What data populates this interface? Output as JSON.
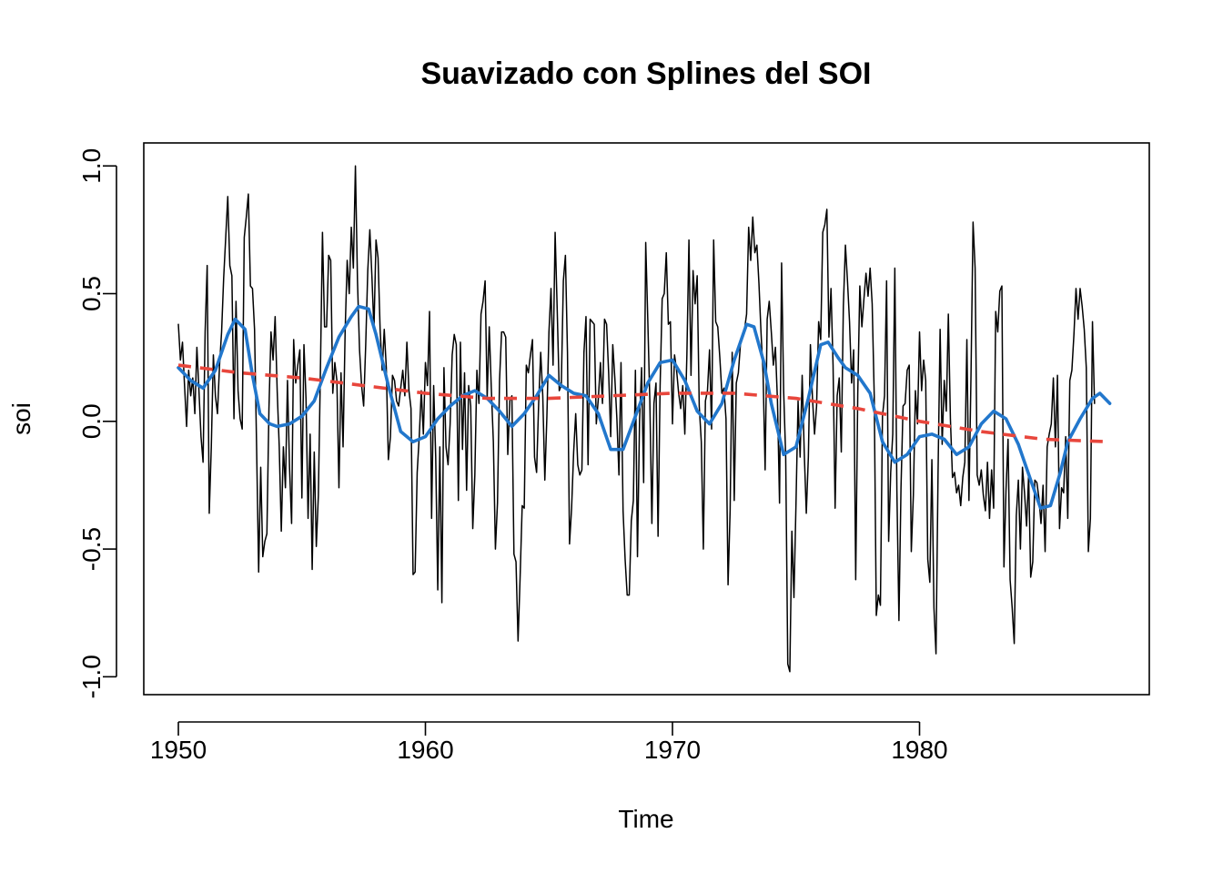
{
  "chart_data": {
    "type": "line",
    "title": "Suavizado con Splines del SOI",
    "xlabel": "Time",
    "ylabel": "soi",
    "xlim": [
      1948.6,
      1989.3
    ],
    "ylim": [
      -1.07,
      1.09
    ],
    "x_ticks": [
      1950,
      1960,
      1970,
      1980
    ],
    "x_tick_labels": [
      "1950",
      "1960",
      "1970",
      "1980"
    ],
    "y_ticks": [
      -1.0,
      -0.5,
      0.0,
      0.5,
      1.0
    ],
    "y_tick_labels": [
      "-1.0",
      "-0.5",
      "0.0",
      "0.5",
      "1.0"
    ],
    "grid": false,
    "legend": "none",
    "series": [
      {
        "start": 1950,
        "frequency": 12,
        "color": "#000000",
        "style": "solid",
        "values": [
          0.38,
          0.24,
          0.31,
          0.14,
          -0.02,
          0.2,
          0.1,
          0.17,
          0.03,
          0.29,
          0.12,
          -0.06,
          -0.16,
          0.35,
          0.61,
          -0.36,
          -0.1,
          0.26,
          0.1,
          0.03,
          0.22,
          0.35,
          0.56,
          0.72,
          0.88,
          0.61,
          0.57,
          0.01,
          0.47,
          0.12,
          0.01,
          -0.03,
          0.72,
          0.8,
          0.89,
          0.53,
          0.52,
          0.36,
          -0.1,
          -0.59,
          -0.18,
          -0.53,
          -0.47,
          -0.44,
          0.05,
          0.35,
          0.24,
          0.41,
          0.12,
          -0.1,
          -0.43,
          -0.1,
          -0.26,
          0.16,
          -0.18,
          -0.4,
          0.32,
          0.15,
          0.22,
          0.28,
          -0.3,
          0.3,
          0.09,
          -0.38,
          -0.05,
          -0.58,
          -0.12,
          -0.49,
          -0.29,
          0.2,
          0.74,
          0.37,
          0.37,
          0.65,
          0.63,
          0.11,
          0.23,
          0.16,
          -0.26,
          0.19,
          -0.1,
          0.35,
          0.63,
          0.5,
          0.76,
          0.6,
          1.0,
          0.55,
          0.28,
          0.14,
          0.06,
          0.3,
          0.59,
          0.75,
          0.57,
          0.36,
          0.71,
          0.64,
          0.36,
          0.2,
          0.36,
          0.21,
          -0.15,
          -0.06,
          0.18,
          0.16,
          0.08,
          0.06,
          0.13,
          0.2,
          0.1,
          0.31,
          0.12,
          0.05,
          -0.6,
          -0.59,
          -0.2,
          -0.06,
          0.12,
          -0.05,
          0.23,
          0.14,
          0.43,
          -0.38,
          0.14,
          -0.14,
          -0.66,
          -0.1,
          -0.71,
          0.21,
          -0.1,
          -0.17,
          -0.01,
          0.26,
          0.34,
          0.3,
          -0.31,
          0.31,
          -0.11,
          0.19,
          -0.27,
          0.14,
          0.06,
          -0.42,
          -0.21,
          0.2,
          0.07,
          0.42,
          0.47,
          0.55,
          0.09,
          0.37,
          0.13,
          -0.08,
          -0.5,
          -0.32,
          0.16,
          0.35,
          0.35,
          0.33,
          -0.13,
          0.08,
          0.1,
          -0.52,
          -0.55,
          -0.86,
          -0.61,
          -0.33,
          -0.34,
          0.22,
          0.19,
          0.26,
          0.32,
          -0.14,
          -0.2,
          0.07,
          0.27,
          0.1,
          -0.23,
          0.02,
          0.35,
          0.52,
          0.22,
          0.74,
          0.44,
          0.12,
          0.14,
          0.55,
          0.65,
          0.27,
          -0.48,
          -0.34,
          -0.12,
          0.03,
          -0.17,
          -0.21,
          -0.19,
          0.27,
          0.41,
          -0.17,
          0.4,
          0.39,
          0.38,
          -0.01,
          0.09,
          0.23,
          0.07,
          0.4,
          0.38,
          0.19,
          -0.06,
          0.3,
          0.17,
          0.01,
          -0.21,
          0.23,
          -0.35,
          -0.54,
          -0.68,
          -0.68,
          -0.39,
          -0.31,
          0.2,
          -0.53,
          0.0,
          0.21,
          -0.24,
          0.7,
          0.4,
          0.08,
          -0.4,
          0.07,
          0.15,
          -0.45,
          0.14,
          0.48,
          0.5,
          0.66,
          0.38,
          0.39,
          -0.01,
          0.26,
          0.2,
          0.11,
          0.05,
          0.14,
          -0.05,
          0.26,
          0.71,
          0.18,
          0.59,
          0.46,
          0.57,
          0.06,
          -0.08,
          -0.5,
          0.08,
          0.12,
          0.28,
          -0.03,
          0.71,
          0.39,
          0.37,
          0.25,
          0.11,
          0.13,
          0.01,
          -0.64,
          -0.35,
          0.27,
          -0.31,
          0.15,
          0.19,
          0.3,
          0.33,
          0.36,
          0.42,
          0.76,
          0.63,
          0.8,
          0.66,
          0.69,
          0.54,
          0.35,
          0.19,
          -0.19,
          0.4,
          0.47,
          0.35,
          0.22,
          0.29,
          0.08,
          -0.32,
          0.62,
          0.12,
          -0.14,
          -0.95,
          -0.98,
          -0.43,
          -0.69,
          -0.32,
          0.08,
          -0.14,
          0.18,
          -0.12,
          -0.36,
          -0.14,
          0.3,
          0.09,
          -0.05,
          0.06,
          0.39,
          0.32,
          0.74,
          0.77,
          0.83,
          0.33,
          0.52,
          0.22,
          -0.34,
          0.1,
          0.17,
          -0.12,
          0.45,
          0.69,
          0.55,
          0.39,
          0.15,
          0.28,
          -0.62,
          0.11,
          0.53,
          0.37,
          0.48,
          0.58,
          0.49,
          0.6,
          0.46,
          0.1,
          -0.76,
          -0.68,
          -0.72,
          0.02,
          0.1,
          0.55,
          -0.47,
          -0.2,
          -0.05,
          0.6,
          -0.27,
          -0.78,
          -0.26,
          0.06,
          0.07,
          0.2,
          0.22,
          -0.51,
          -0.29,
          0.12,
          -0.01,
          0.35,
          0.12,
          0.24,
          0.16,
          -0.54,
          -0.63,
          -0.15,
          -0.73,
          -0.91,
          -0.2,
          0.36,
          -0.09,
          0.16,
          0.04,
          0.42,
          0.01,
          -0.22,
          -0.2,
          -0.28,
          -0.25,
          -0.33,
          -0.22,
          -0.16,
          0.32,
          -0.31,
          0.18,
          0.78,
          0.6,
          -0.21,
          -0.25,
          -0.19,
          -0.29,
          -0.35,
          -0.16,
          -0.38,
          -0.19,
          -0.34,
          0.43,
          0.35,
          0.51,
          0.53,
          -0.57,
          -0.27,
          -0.07,
          -0.62,
          -0.73,
          -0.87,
          -0.37,
          -0.23,
          -0.5,
          -0.18,
          -0.28,
          -0.41,
          -0.21,
          -0.61,
          -0.55,
          -0.23,
          -0.24,
          -0.3,
          -0.4,
          -0.25,
          -0.51,
          -0.1,
          -0.05,
          -0.01,
          0.17,
          -0.1,
          0.18,
          -0.42,
          -0.26,
          -0.28,
          -0.06,
          -0.38,
          0.16,
          0.2,
          0.34,
          0.52,
          0.4,
          0.52,
          0.45,
          0.36,
          0.21,
          -0.51,
          -0.38,
          0.39,
          0.07
        ]
      },
      {
        "color": "#2277CC",
        "style": "solid",
        "x": [
          1950.0,
          1950.5,
          1951.0,
          1951.5,
          1952.0,
          1952.3,
          1952.7,
          1953.0,
          1953.3,
          1953.7,
          1954.0,
          1954.5,
          1955.0,
          1955.5,
          1956.0,
          1956.5,
          1957.0,
          1957.3,
          1957.7,
          1958.0,
          1958.5,
          1959.0,
          1959.5,
          1960.0,
          1960.5,
          1961.0,
          1961.5,
          1962.0,
          1962.5,
          1963.0,
          1963.5,
          1964.0,
          1964.5,
          1965.0,
          1965.5,
          1966.0,
          1966.5,
          1967.0,
          1967.5,
          1968.0,
          1968.5,
          1969.0,
          1969.5,
          1970.0,
          1970.5,
          1971.0,
          1971.5,
          1972.0,
          1972.5,
          1973.0,
          1973.3,
          1973.7,
          1974.0,
          1974.5,
          1975.0,
          1975.5,
          1976.0,
          1976.3,
          1976.7,
          1977.0,
          1977.5,
          1978.0,
          1978.5,
          1979.0,
          1979.5,
          1980.0,
          1980.5,
          1981.0,
          1981.5,
          1982.0,
          1982.5,
          1983.0,
          1983.5,
          1984.0,
          1984.5,
          1984.9,
          1985.3,
          1985.7,
          1986.0,
          1986.5,
          1987.0,
          1987.3,
          1987.7
        ],
        "values": [
          0.21,
          0.16,
          0.13,
          0.2,
          0.34,
          0.4,
          0.36,
          0.18,
          0.03,
          -0.01,
          -0.02,
          -0.01,
          0.02,
          0.08,
          0.21,
          0.33,
          0.41,
          0.45,
          0.44,
          0.34,
          0.14,
          -0.04,
          -0.08,
          -0.06,
          0.01,
          0.06,
          0.1,
          0.12,
          0.09,
          0.04,
          -0.02,
          0.03,
          0.1,
          0.18,
          0.14,
          0.11,
          0.1,
          0.03,
          -0.11,
          -0.11,
          0.02,
          0.15,
          0.23,
          0.24,
          0.16,
          0.04,
          -0.01,
          0.07,
          0.24,
          0.38,
          0.37,
          0.23,
          0.07,
          -0.13,
          -0.1,
          0.09,
          0.3,
          0.31,
          0.25,
          0.21,
          0.18,
          0.11,
          -0.08,
          -0.16,
          -0.13,
          -0.06,
          -0.05,
          -0.07,
          -0.13,
          -0.1,
          -0.01,
          0.04,
          0.01,
          -0.09,
          -0.23,
          -0.34,
          -0.33,
          -0.2,
          -0.08,
          0.01,
          0.09,
          0.11,
          0.07
        ]
      },
      {
        "color": "#E8463C",
        "style": "dashed",
        "x": [
          1950.0,
          1952.5,
          1955.0,
          1957.5,
          1960.0,
          1962.5,
          1965.0,
          1967.5,
          1970.0,
          1972.5,
          1975.0,
          1977.5,
          1980.0,
          1982.5,
          1985.0,
          1987.7
        ],
        "values": [
          0.22,
          0.19,
          0.17,
          0.14,
          0.11,
          0.09,
          0.09,
          0.1,
          0.11,
          0.11,
          0.09,
          0.05,
          0.0,
          -0.04,
          -0.07,
          -0.08
        ]
      }
    ]
  }
}
